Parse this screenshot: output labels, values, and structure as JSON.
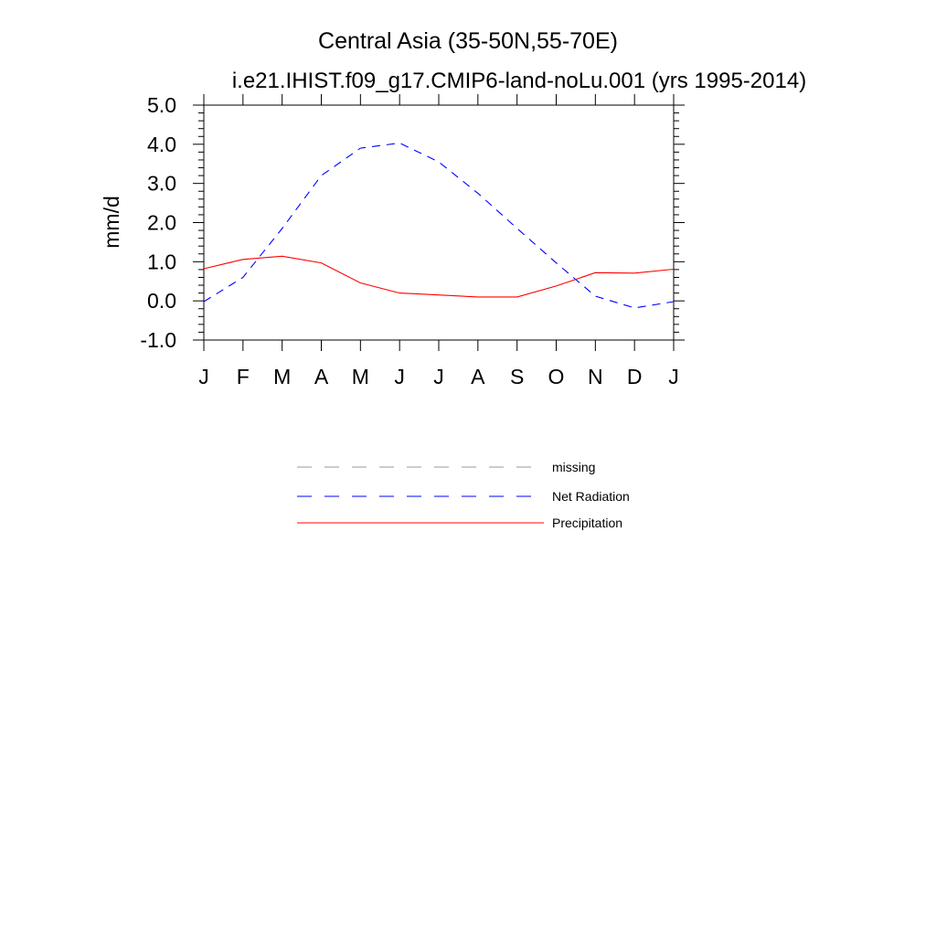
{
  "chart_data": {
    "type": "line",
    "title": "Central Asia (35-50N,55-70E)",
    "subtitle": "i.e21.IHIST.f09_g17.CMIP6-land-noLu.001 (yrs 1995-2014)",
    "ylabel": "mm/d",
    "ylim": [
      -1.0,
      5.0
    ],
    "yticks": [
      "-1.0",
      "0.0",
      "1.0",
      "2.0",
      "3.0",
      "4.0",
      "5.0"
    ],
    "categories": [
      "J",
      "F",
      "M",
      "A",
      "M",
      "J",
      "J",
      "A",
      "S",
      "O",
      "N",
      "D",
      "J"
    ],
    "series": [
      {
        "name": "Net Radiation",
        "color": "#0000ff",
        "dash": "dashed",
        "values": [
          -0.02,
          0.6,
          1.85,
          3.2,
          3.9,
          4.03,
          3.55,
          2.75,
          1.85,
          0.97,
          0.12,
          -0.18,
          -0.02
        ]
      },
      {
        "name": "Precipitation",
        "color": "#ff0000",
        "dash": "solid",
        "values": [
          0.82,
          1.06,
          1.14,
          0.97,
          0.46,
          0.2,
          0.15,
          0.1,
          0.1,
          0.38,
          0.72,
          0.71,
          0.81
        ]
      }
    ],
    "legend": [
      {
        "label": "missing",
        "color": "#999999",
        "dash": "dashed"
      },
      {
        "label": "Net Radiation",
        "color": "#0000ff",
        "dash": "dashed"
      },
      {
        "label": "Precipitation",
        "color": "#ff0000",
        "dash": "solid"
      }
    ],
    "legend_position": "bottom-center",
    "grid": false
  }
}
